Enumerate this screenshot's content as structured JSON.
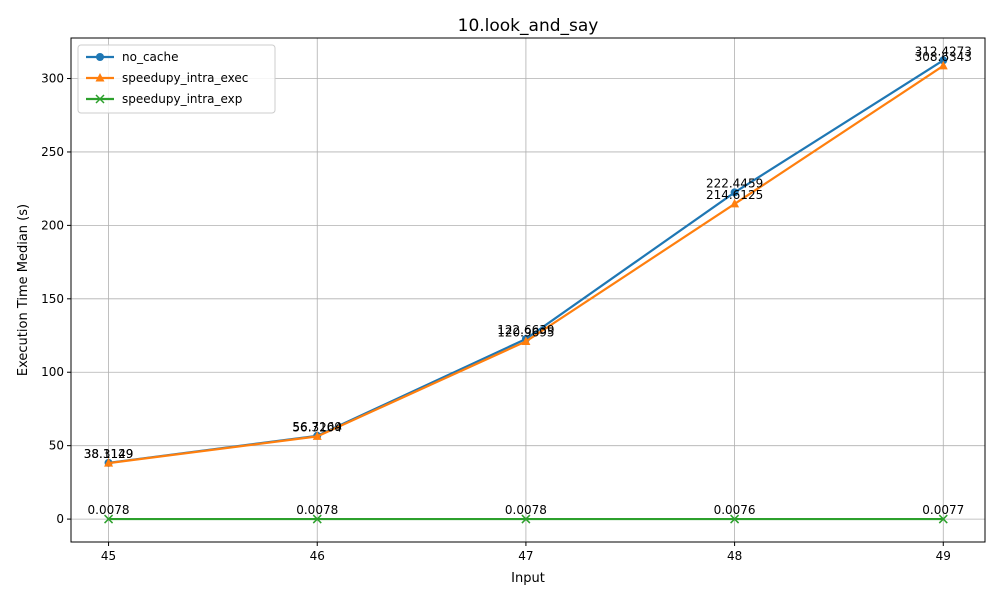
{
  "chart_data": {
    "type": "line",
    "title": "10.look_and_say",
    "xlabel": "Input",
    "ylabel": "Execution Time Median (s)",
    "x": [
      45,
      46,
      47,
      48,
      49
    ],
    "xlim": [
      44.82,
      49.2
    ],
    "ylim": [
      -15.6,
      327.6
    ],
    "yticks": [
      0,
      50,
      100,
      150,
      200,
      250,
      300
    ],
    "grid": true,
    "legend_position": "top-left",
    "series": [
      {
        "name": "no_cache",
        "color": "#1f77b4",
        "marker": "circle",
        "values": [
          38.3129,
          56.7169,
          122.6639,
          222.4459,
          312.4273
        ],
        "labels": [
          "38.3129",
          "56.7169",
          "122.6639",
          "222.4459",
          "312.4273"
        ]
      },
      {
        "name": "speedupy_intra_exec",
        "color": "#ff7f0e",
        "marker": "triangle",
        "values": [
          38.1149,
          56.3204,
          120.9695,
          214.6125,
          308.6343
        ],
        "labels": [
          "38.1149",
          "56.3204",
          "120.9695",
          "214.6125",
          "308.6343"
        ]
      },
      {
        "name": "speedupy_intra_exp",
        "color": "#2ca02c",
        "marker": "x",
        "values": [
          0.0078,
          0.0078,
          0.0078,
          0.0076,
          0.0077
        ],
        "labels": [
          "0.0078",
          "0.0078",
          "0.0078",
          "0.0076",
          "0.0077"
        ]
      }
    ]
  }
}
